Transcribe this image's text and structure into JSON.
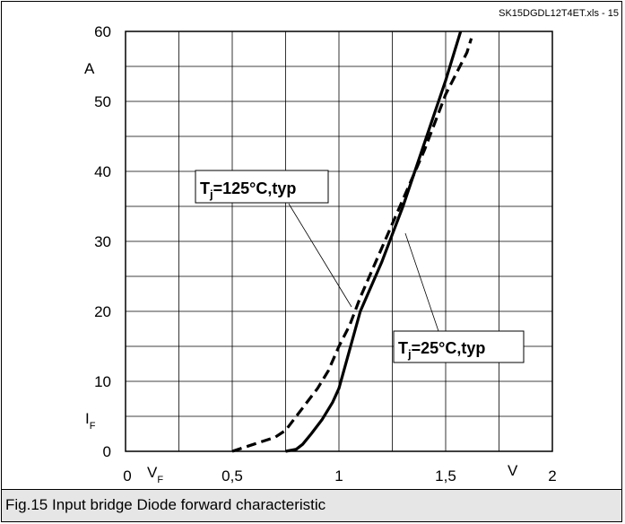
{
  "source_label": "SK15DGDL12T4ET.xls - 15",
  "caption": "Fig.15 Input bridge Diode forward characteristic",
  "axis": {
    "y_unit": "A",
    "y_symbol": "I",
    "y_symbol_sub": "F",
    "x_unit": "V",
    "x_symbol": "V",
    "x_symbol_sub": "F"
  },
  "annotations": {
    "hot": {
      "main": "T",
      "sub": "j",
      "rest": "=125°C,typ"
    },
    "cold": {
      "main": "T",
      "sub": "j",
      "rest": "=25°C,typ"
    }
  },
  "chart_data": {
    "type": "line",
    "title": "",
    "xlabel": "V",
    "ylabel": "A",
    "xlim": [
      0,
      2
    ],
    "ylim": [
      0,
      60
    ],
    "x_ticks": [
      0,
      0.25,
      0.5,
      0.75,
      1,
      1.25,
      1.5,
      1.75,
      2
    ],
    "x_tick_labels": [
      {
        "value": 0,
        "label": "0"
      },
      {
        "value": 0.5,
        "label": "0,5"
      },
      {
        "value": 1,
        "label": "1"
      },
      {
        "value": 1.5,
        "label": "1,5"
      },
      {
        "value": 2,
        "label": "2"
      }
    ],
    "y_ticks": [
      0,
      5,
      10,
      15,
      20,
      25,
      30,
      35,
      40,
      45,
      50,
      55,
      60
    ],
    "y_tick_labels": [
      {
        "value": 0,
        "label": "0"
      },
      {
        "value": 10,
        "label": "10"
      },
      {
        "value": 20,
        "label": "20"
      },
      {
        "value": 30,
        "label": "30"
      },
      {
        "value": 40,
        "label": "40"
      },
      {
        "value": 50,
        "label": "50"
      },
      {
        "value": 60,
        "label": "60"
      }
    ],
    "grid": true,
    "series": [
      {
        "key": "tj25",
        "style": "solid",
        "color": "#000000",
        "points": [
          [
            0.75,
            0
          ],
          [
            0.8,
            0.3
          ],
          [
            0.83,
            1
          ],
          [
            0.87,
            2.5
          ],
          [
            0.92,
            4.5
          ],
          [
            0.97,
            7
          ],
          [
            1.0,
            9
          ],
          [
            1.05,
            14.5
          ],
          [
            1.1,
            20
          ],
          [
            1.2,
            27
          ],
          [
            1.3,
            35
          ],
          [
            1.4,
            44
          ],
          [
            1.5,
            53
          ],
          [
            1.57,
            60
          ]
        ]
      },
      {
        "key": "tj125",
        "style": "dashed",
        "color": "#000000",
        "points": [
          [
            0.5,
            0
          ],
          [
            0.6,
            1
          ],
          [
            0.7,
            2
          ],
          [
            0.75,
            3
          ],
          [
            0.8,
            5
          ],
          [
            0.85,
            7
          ],
          [
            0.9,
            9
          ],
          [
            0.95,
            11.5
          ],
          [
            1.0,
            15
          ],
          [
            1.05,
            18
          ],
          [
            1.1,
            22
          ],
          [
            1.2,
            29
          ],
          [
            1.3,
            36
          ],
          [
            1.4,
            43
          ],
          [
            1.5,
            51
          ],
          [
            1.6,
            57
          ],
          [
            1.62,
            59
          ]
        ]
      }
    ]
  }
}
